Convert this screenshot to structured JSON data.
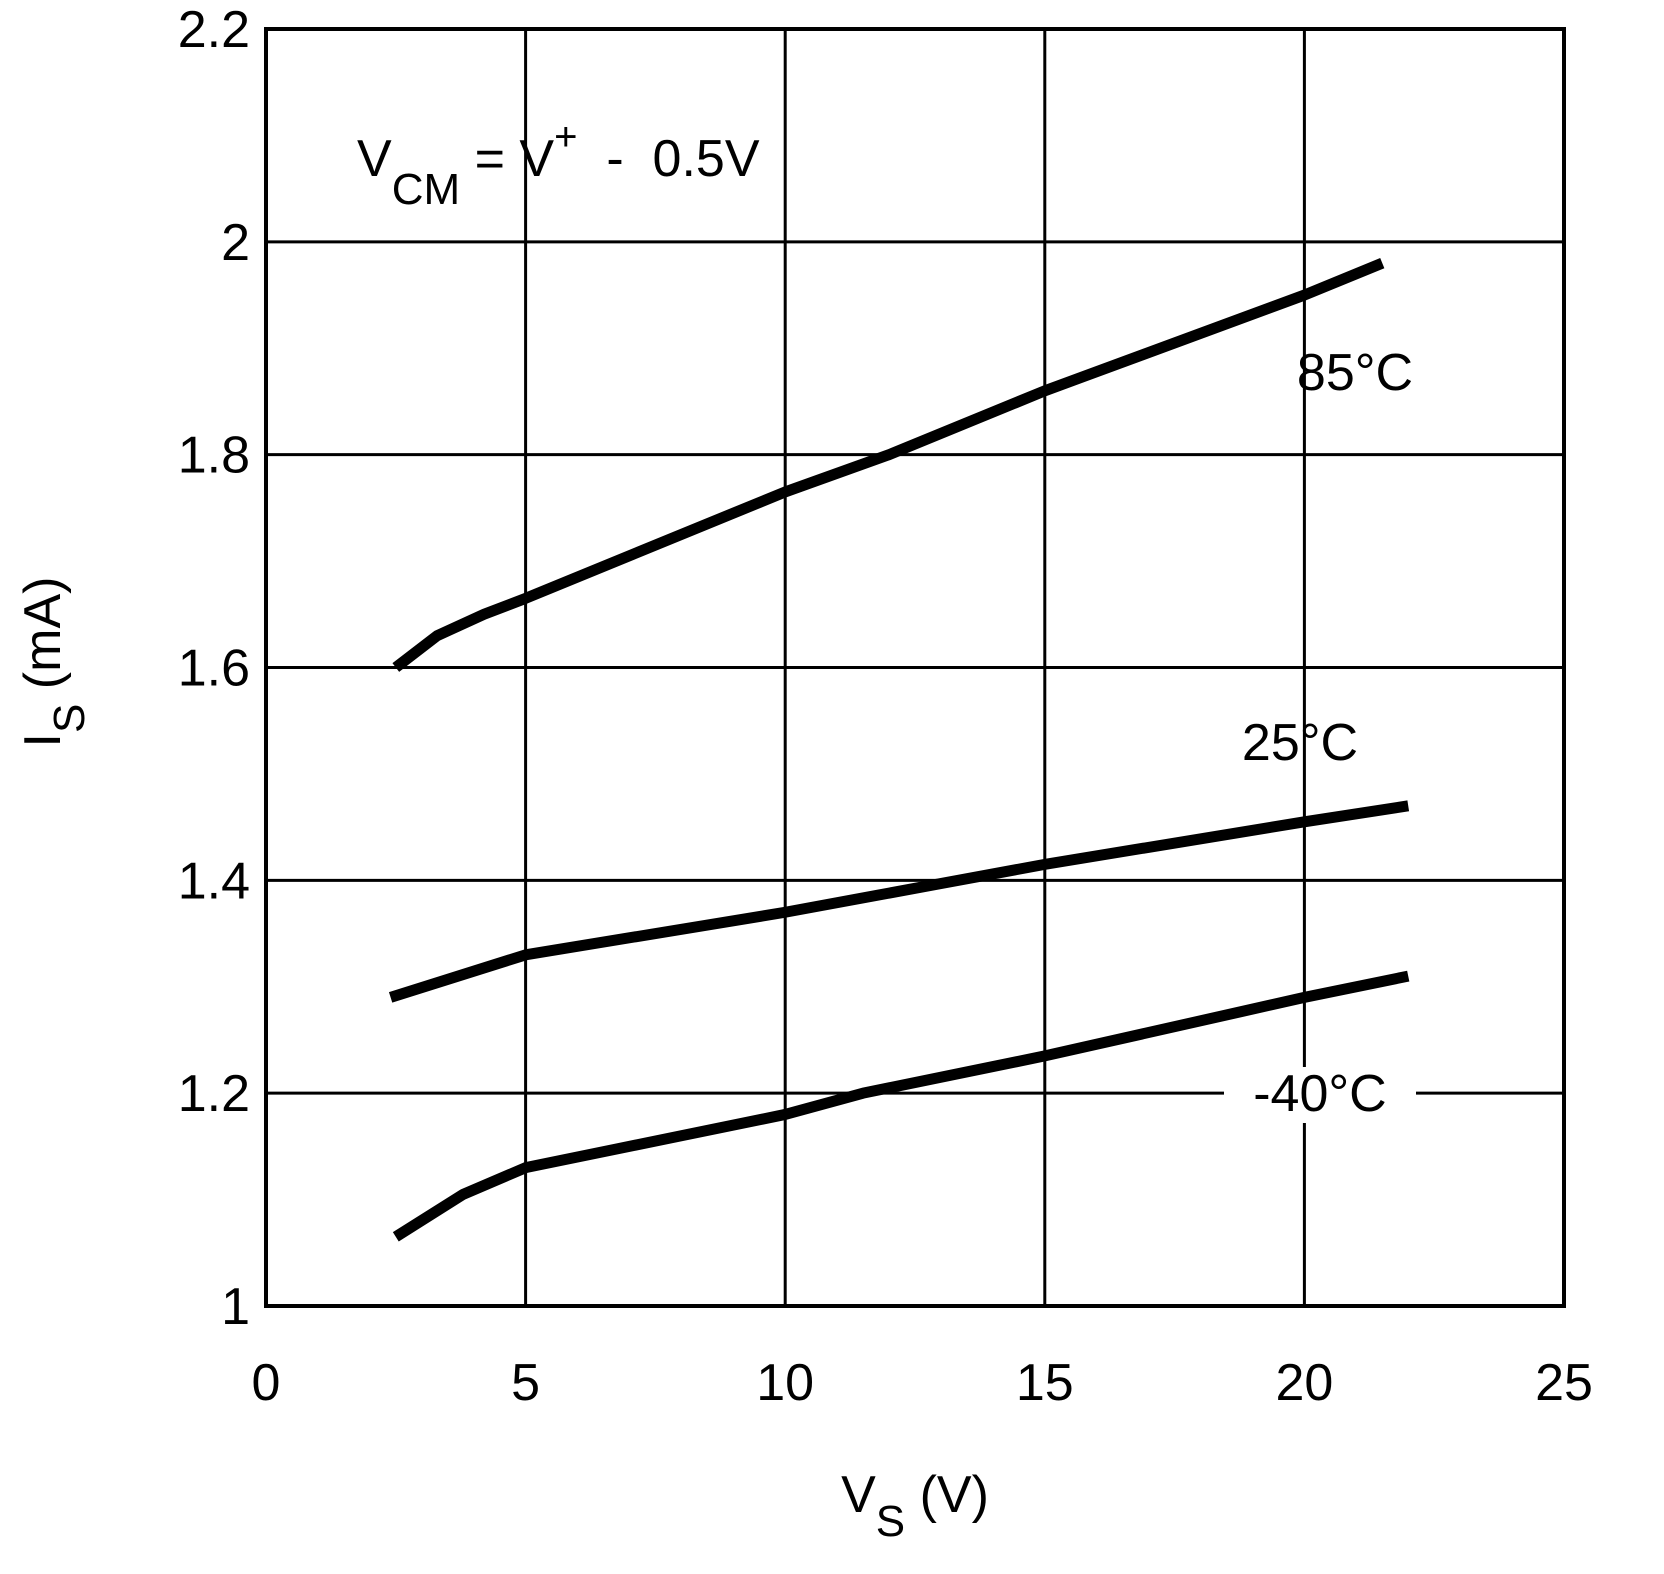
{
  "chart_data": {
    "type": "line",
    "annotation": {
      "v": "V",
      "v_sub": "CM",
      "eq": " = V",
      "eq_sup": "+",
      "rest": "  -  0.5V"
    },
    "x_label": {
      "base": "V",
      "sub": "S",
      "unit": " (V)"
    },
    "y_label": {
      "base": "I",
      "sub": "S",
      "unit": " (mA)"
    },
    "xlim": [
      0,
      25
    ],
    "xticks": [
      0,
      5,
      10,
      15,
      20,
      25
    ],
    "ylim": [
      1,
      2.2
    ],
    "yticks": [
      1,
      1.2,
      1.4,
      1.6,
      1.8,
      2,
      2.2
    ],
    "grid": true,
    "series": [
      {
        "name": "85°C",
        "color": "#000000",
        "x": [
          2.5,
          3.3,
          4.2,
          5,
          10,
          12,
          15,
          20,
          21.5
        ],
        "values": [
          1.6,
          1.63,
          1.65,
          1.665,
          1.765,
          1.8,
          1.86,
          1.95,
          1.98
        ]
      },
      {
        "name": "25°C",
        "color": "#000000",
        "x": [
          2.4,
          5,
          10,
          15,
          20,
          22
        ],
        "values": [
          1.29,
          1.33,
          1.37,
          1.415,
          1.455,
          1.47
        ]
      },
      {
        "name": "-40°C",
        "color": "#000000",
        "x": [
          2.5,
          3.8,
          5,
          10,
          11.5,
          15,
          20,
          22
        ],
        "values": [
          1.065,
          1.105,
          1.13,
          1.18,
          1.2,
          1.235,
          1.29,
          1.31
        ]
      }
    ]
  }
}
